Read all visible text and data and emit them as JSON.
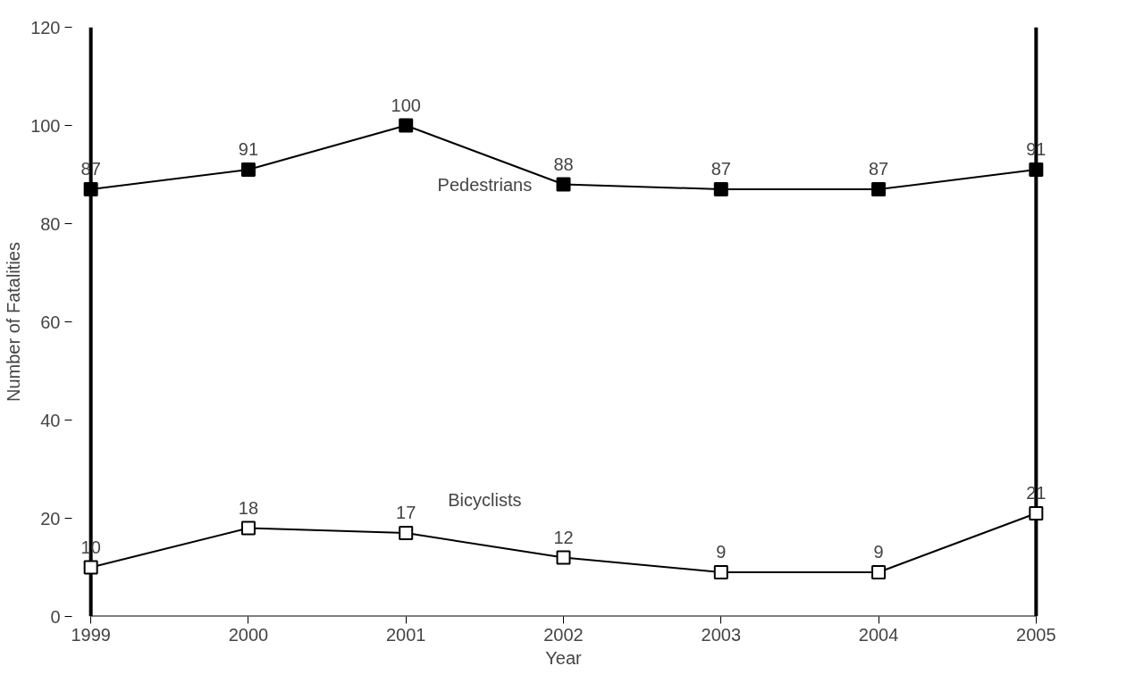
{
  "chart_data": {
    "type": "line",
    "xlabel": "Year",
    "ylabel": "Number of Fatalities",
    "x": [
      1999,
      2000,
      2001,
      2002,
      2003,
      2004,
      2005
    ],
    "xlim": [
      1999,
      2005
    ],
    "xticks": [
      1999,
      2000,
      2001,
      2002,
      2003,
      2004,
      2005
    ],
    "ylim": [
      0,
      120
    ],
    "yticks": [
      0,
      20,
      40,
      60,
      80,
      100,
      120
    ],
    "series": [
      {
        "name": "Pedestrians",
        "color": "#000000",
        "values": [
          87,
          91,
          100,
          88,
          87,
          87,
          91
        ]
      },
      {
        "name": "Bicyclists",
        "color": "#000000",
        "values": [
          10,
          18,
          17,
          12,
          9,
          9,
          21
        ]
      }
    ],
    "marker": "square",
    "data_labels": true,
    "grid": false
  }
}
